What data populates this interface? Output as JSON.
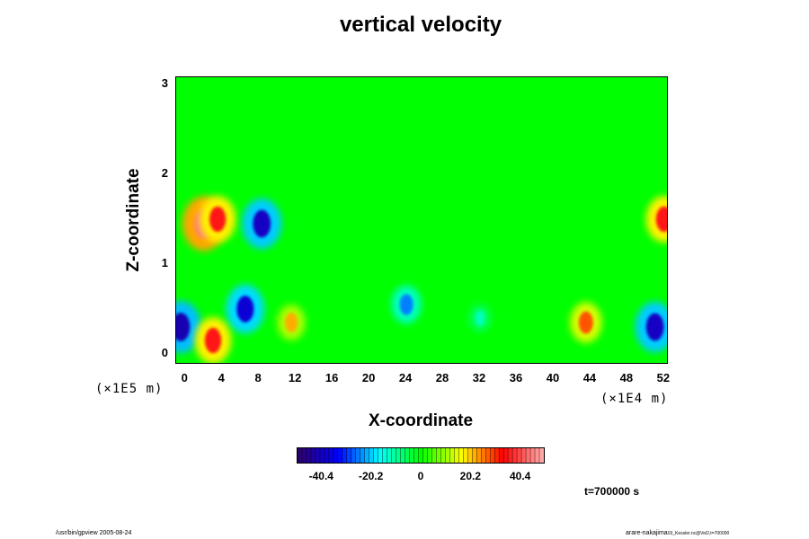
{
  "chart_data": {
    "type": "heatmap",
    "title": "vertical velocity",
    "xlabel": "X-coordinate",
    "ylabel": "Z-coordinate",
    "x_scale_label": "(×1E4 m)",
    "y_scale_label": "(×1E5 m)",
    "xlim": [
      -1,
      52.5
    ],
    "ylim": [
      -0.12,
      3.08
    ],
    "x_ticks": [
      "0",
      "4",
      "8",
      "12",
      "16",
      "20",
      "24",
      "28",
      "32",
      "36",
      "40",
      "44",
      "48",
      "52"
    ],
    "y_ticks": [
      "0",
      "1",
      "2",
      "3"
    ],
    "colorbar": {
      "range": [
        -50,
        50
      ],
      "ticks": [
        "-40.4",
        "-20.2",
        "0",
        "20.2",
        "40.4"
      ],
      "tick_values": [
        -40.4,
        -20.2,
        0,
        20.2,
        40.4
      ],
      "colormap": [
        "#30006a",
        "#0000ff",
        "#00ffff",
        "#00ff00",
        "#ffff00",
        "#ff0000",
        "#ffb0b0"
      ]
    },
    "features": [
      {
        "x": 2.0,
        "z": 1.45,
        "value": 45
      },
      {
        "x": 3.5,
        "z": 1.5,
        "value": 35
      },
      {
        "x": 8.3,
        "z": 1.45,
        "value": -40
      },
      {
        "x": 6.5,
        "z": 0.5,
        "value": -38
      },
      {
        "x": 11.5,
        "z": 0.35,
        "value": 22
      },
      {
        "x": 24.0,
        "z": 0.55,
        "value": -25
      },
      {
        "x": 43.5,
        "z": 0.35,
        "value": 28
      },
      {
        "x": 51.0,
        "z": 0.3,
        "value": -40
      },
      {
        "x": -0.5,
        "z": 0.3,
        "value": -42
      },
      {
        "x": 3.0,
        "z": 0.15,
        "value": 35
      },
      {
        "x": 32.0,
        "z": 0.4,
        "value": -12
      },
      {
        "x": 52.0,
        "z": 1.5,
        "value": 35
      }
    ],
    "time_label": "t=700000 s"
  },
  "footer": {
    "left": "/usr/bin/gpview 2005-08-24",
    "right": "arare-nakajima",
    "right_small": "03_Kessler.nc@Vel2,t=700000"
  }
}
